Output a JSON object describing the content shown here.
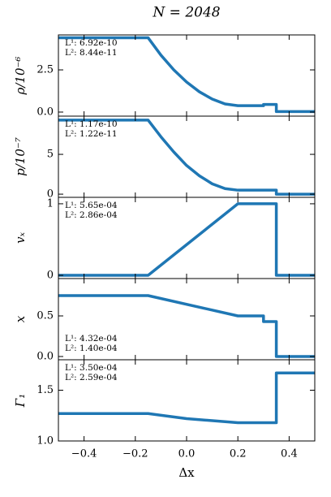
{
  "chart_data": [
    {
      "type": "line",
      "title": "N = 2048",
      "ylabel": "ρ/10⁻⁶",
      "color": "#1f77b4",
      "annotations": [
        "L¹: 6.92e-10",
        "L²: 8.44e-11"
      ],
      "x": [
        -0.5,
        -0.15,
        -0.1,
        -0.05,
        0,
        0.05,
        0.1,
        0.15,
        0.2,
        0.3,
        0.3,
        0.35,
        0.35,
        0.5
      ],
      "values": [
        4.4,
        4.4,
        3.37,
        2.5,
        1.78,
        1.2,
        0.77,
        0.48,
        0.38,
        0.38,
        0.45,
        0.45,
        0.03,
        0.03
      ],
      "xlim": [
        -0.5,
        0.5
      ],
      "ylim": [
        -0.24,
        4.57
      ],
      "yticks": [
        {
          "value": 0,
          "label": "0.0"
        },
        2.5
      ]
    },
    {
      "type": "line",
      "ylabel": "p/10⁻⁷",
      "color": "#1f77b4",
      "annotations": [
        "L¹: 1.17e-10",
        "L²: 1.22e-11"
      ],
      "x": [
        -0.5,
        -0.15,
        -0.1,
        -0.05,
        0,
        0.05,
        0.1,
        0.15,
        0.2,
        0.35,
        0.35,
        0.5
      ],
      "values": [
        9.3,
        9.3,
        7.2,
        5.3,
        3.6,
        2.3,
        1.3,
        0.7,
        0.5,
        0.5,
        0,
        0
      ],
      "xlim": [
        -0.5,
        0.5
      ],
      "ylim": [
        -0.4,
        9.8
      ],
      "yticks": [
        0,
        5
      ]
    },
    {
      "type": "line",
      "ylabel": "vₓ",
      "color": "#1f77b4",
      "annotations": [
        "L¹: 5.65e-04",
        "L²: 2.86e-04"
      ],
      "x": [
        -0.5,
        -0.15,
        0.2,
        0.35,
        0.35,
        0.5
      ],
      "values": [
        0,
        0,
        1,
        1,
        0,
        0
      ],
      "xlim": [
        -0.5,
        0.5
      ],
      "ylim": [
        -0.045,
        1.09
      ],
      "yticks": [
        0,
        1
      ]
    },
    {
      "type": "line",
      "ylabel": "x",
      "color": "#1f77b4",
      "annotations": [
        "L¹: 4.32e-04",
        "L²: 1.40e-04"
      ],
      "x": [
        -0.5,
        -0.15,
        0.2,
        0.3,
        0.3,
        0.35,
        0.35,
        0.5
      ],
      "values": [
        0.75,
        0.75,
        0.5,
        0.5,
        0.43,
        0.43,
        0,
        0
      ],
      "xlim": [
        -0.5,
        0.5
      ],
      "ylim": [
        -0.04,
        0.96
      ],
      "yticks": [
        {
          "value": 0,
          "label": "0.0"
        },
        0.5
      ]
    },
    {
      "type": "line",
      "ylabel": "Γ₁",
      "xlabel": "Δx",
      "color": "#1f77b4",
      "annotations": [
        "L¹: 3.50e-04",
        "L²: 2.59e-04"
      ],
      "x": [
        -0.5,
        -0.15,
        0,
        0.2,
        0.35,
        0.35,
        0.5
      ],
      "values": [
        1.27,
        1.27,
        1.22,
        1.18,
        1.18,
        1.67,
        1.67
      ],
      "xlim": [
        -0.5,
        0.5
      ],
      "ylim": [
        1.0,
        1.8
      ],
      "yticks": [
        {
          "value": 1,
          "label": "1.0"
        },
        1.5
      ],
      "xticks": [
        {
          "value": -0.4,
          "label": "−0.4"
        },
        {
          "value": -0.2,
          "label": "−0.2"
        },
        {
          "value": 0,
          "label": "0.0"
        },
        0.2,
        0.4
      ]
    }
  ]
}
